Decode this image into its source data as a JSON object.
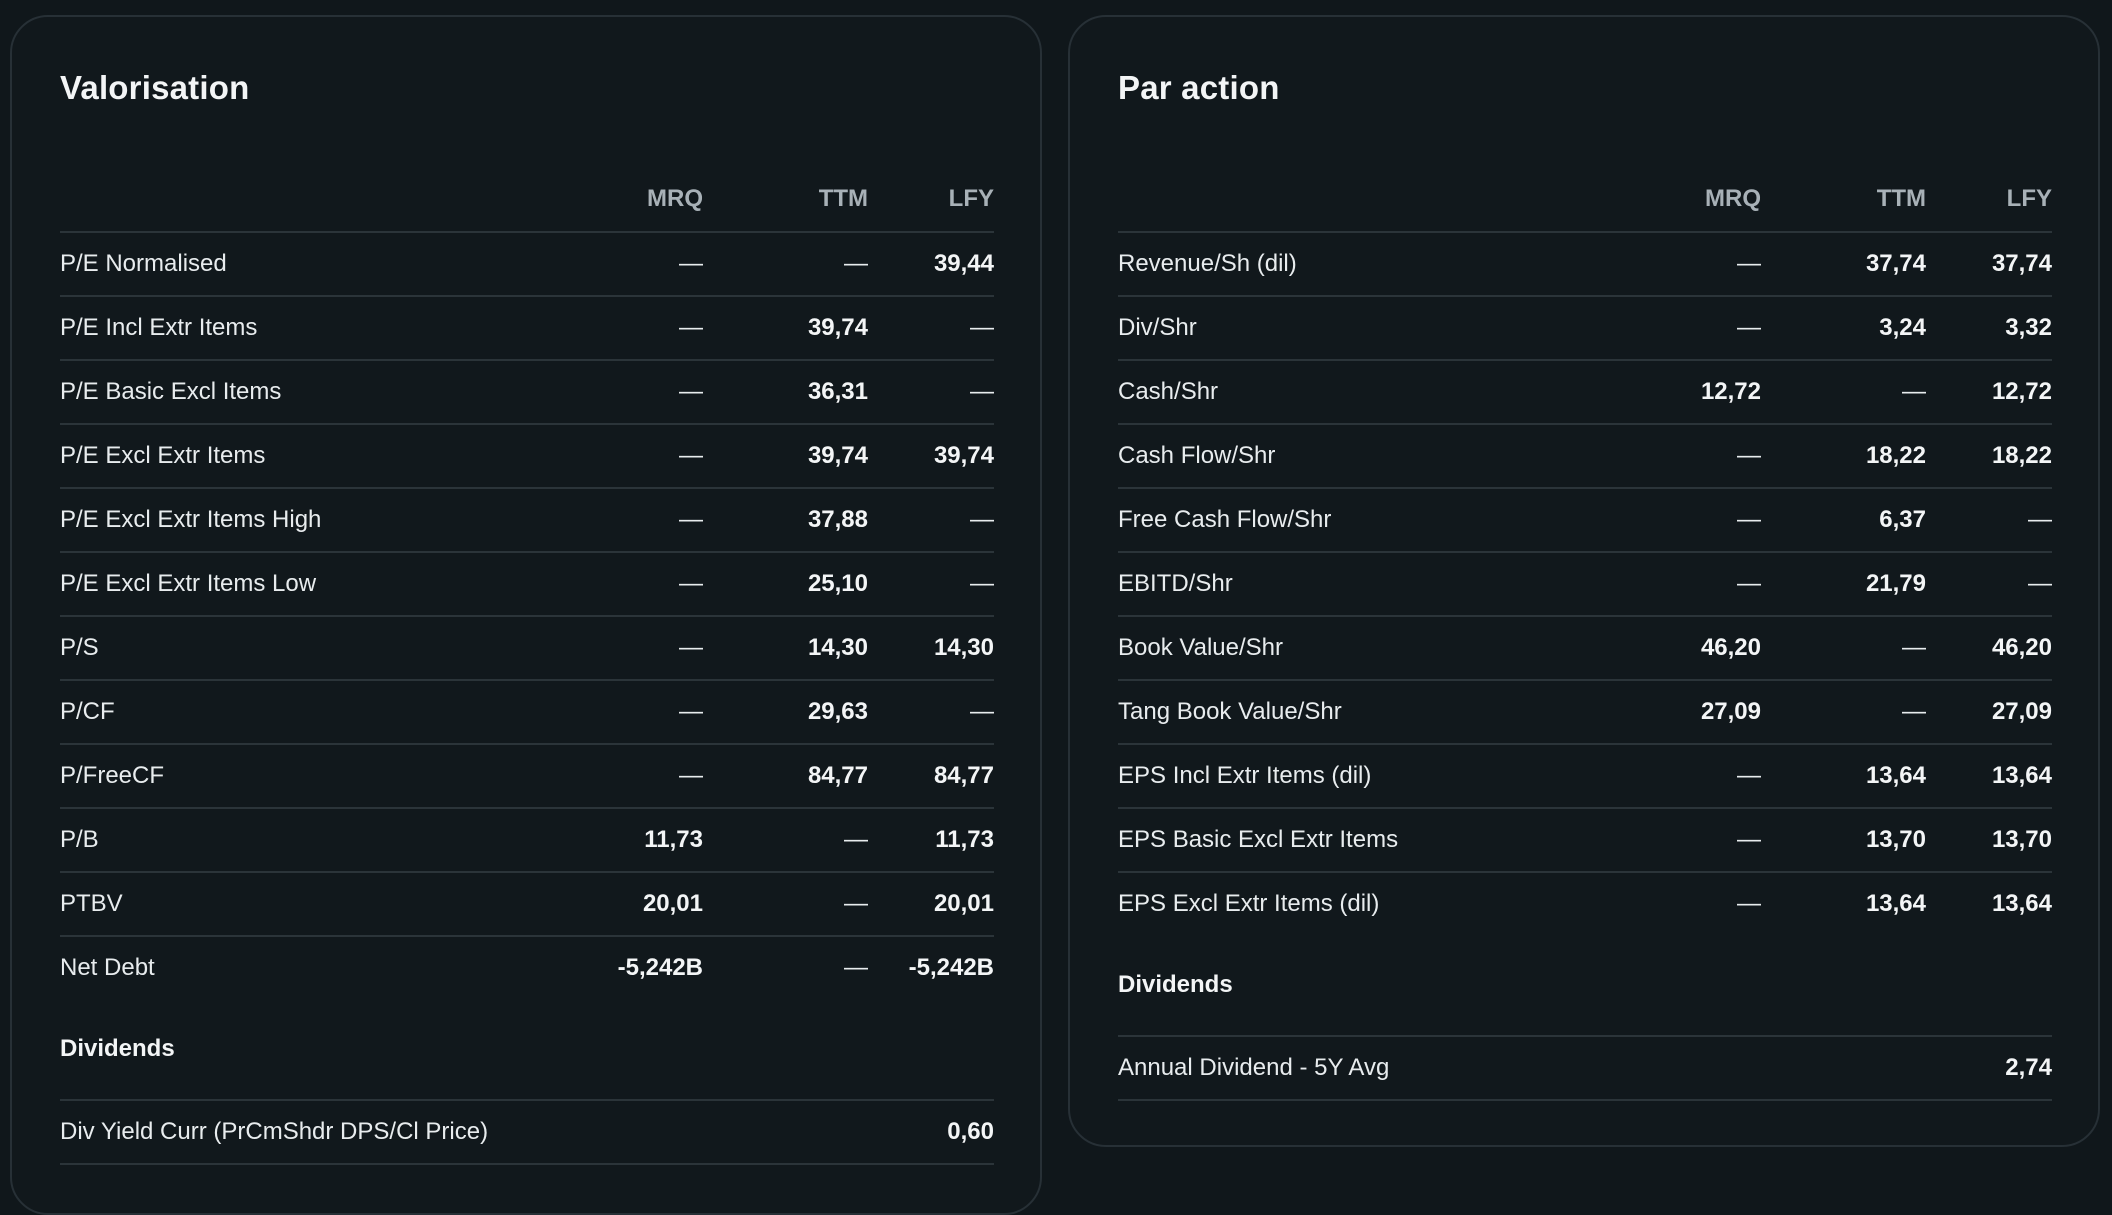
{
  "valorisation": {
    "title": "Valorisation",
    "headers": {
      "mrq": "MRQ",
      "ttm": "TTM",
      "lfy": "LFY"
    },
    "rows": [
      {
        "label": "P/E Normalised",
        "mrq": "—",
        "ttm": "—",
        "lfy": "39,44"
      },
      {
        "label": "P/E Incl Extr Items",
        "mrq": "—",
        "ttm": "39,74",
        "lfy": "—"
      },
      {
        "label": "P/E Basic Excl Items",
        "mrq": "—",
        "ttm": "36,31",
        "lfy": "—"
      },
      {
        "label": "P/E Excl Extr Items",
        "mrq": "—",
        "ttm": "39,74",
        "lfy": "39,74"
      },
      {
        "label": "P/E Excl Extr Items High",
        "mrq": "—",
        "ttm": "37,88",
        "lfy": "—"
      },
      {
        "label": "P/E Excl Extr Items Low",
        "mrq": "—",
        "ttm": "25,10",
        "lfy": "—"
      },
      {
        "label": "P/S",
        "mrq": "—",
        "ttm": "14,30",
        "lfy": "14,30"
      },
      {
        "label": "P/CF",
        "mrq": "—",
        "ttm": "29,63",
        "lfy": "—"
      },
      {
        "label": "P/FreeCF",
        "mrq": "—",
        "ttm": "84,77",
        "lfy": "84,77"
      },
      {
        "label": "P/B",
        "mrq": "11,73",
        "ttm": "—",
        "lfy": "11,73"
      },
      {
        "label": "PTBV",
        "mrq": "20,01",
        "ttm": "—",
        "lfy": "20,01"
      },
      {
        "label": "Net Debt",
        "mrq": "-5,242B",
        "ttm": "—",
        "lfy": "-5,242B"
      }
    ],
    "dividends": {
      "title": "Dividends",
      "rows": [
        {
          "label": "Div Yield Curr (PrCmShdr DPS/Cl Price)",
          "value": "0,60"
        }
      ]
    }
  },
  "par_action": {
    "title": "Par action",
    "headers": {
      "mrq": "MRQ",
      "ttm": "TTM",
      "lfy": "LFY"
    },
    "rows": [
      {
        "label": "Revenue/Sh (dil)",
        "mrq": "—",
        "ttm": "37,74",
        "lfy": "37,74"
      },
      {
        "label": "Div/Shr",
        "mrq": "—",
        "ttm": "3,24",
        "lfy": "3,32"
      },
      {
        "label": "Cash/Shr",
        "mrq": "12,72",
        "ttm": "—",
        "lfy": "12,72"
      },
      {
        "label": "Cash Flow/Shr",
        "mrq": "—",
        "ttm": "18,22",
        "lfy": "18,22"
      },
      {
        "label": "Free Cash Flow/Shr",
        "mrq": "—",
        "ttm": "6,37",
        "lfy": "—"
      },
      {
        "label": "EBITD/Shr",
        "mrq": "—",
        "ttm": "21,79",
        "lfy": "—"
      },
      {
        "label": "Book Value/Shr",
        "mrq": "46,20",
        "ttm": "—",
        "lfy": "46,20"
      },
      {
        "label": "Tang Book Value/Shr",
        "mrq": "27,09",
        "ttm": "—",
        "lfy": "27,09"
      },
      {
        "label": "EPS Incl Extr Items (dil)",
        "mrq": "—",
        "ttm": "13,64",
        "lfy": "13,64"
      },
      {
        "label": "EPS Basic Excl Extr Items",
        "mrq": "—",
        "ttm": "13,70",
        "lfy": "13,70"
      },
      {
        "label": "EPS Excl Extr Items (dil)",
        "mrq": "—",
        "ttm": "13,64",
        "lfy": "13,64"
      }
    ],
    "dividends": {
      "title": "Dividends",
      "rows": [
        {
          "label": "Annual Dividend - 5Y Avg",
          "value": "2,74"
        }
      ]
    }
  },
  "colors": {
    "background": "#10171b",
    "card": "#11181c",
    "border": "#273036",
    "text": "#f3f5f6",
    "muted": "#a8b1b7"
  }
}
